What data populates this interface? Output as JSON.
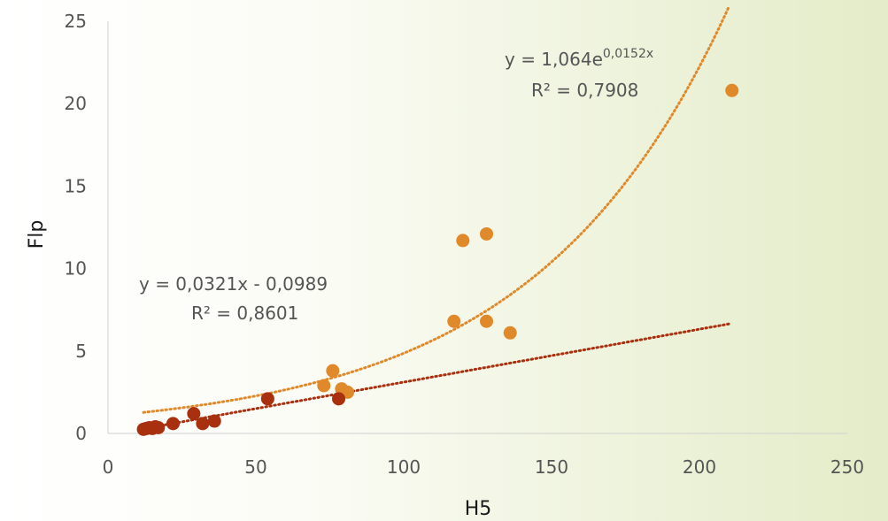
{
  "chart_data": {
    "type": "scatter",
    "xlabel": "H5",
    "ylabel": "Flp",
    "xlim": [
      0,
      250
    ],
    "ylim": [
      0,
      25
    ],
    "x_ticks": [
      "0",
      "50",
      "100",
      "150",
      "200",
      "250"
    ],
    "y_ticks": [
      "0",
      "5",
      "10",
      "15",
      "20",
      "25"
    ],
    "grid": false,
    "legend": "none",
    "series": [
      {
        "color": "#E0892A",
        "points": [
          [
            73,
            2.9
          ],
          [
            76,
            3.8
          ],
          [
            79,
            2.7
          ],
          [
            81,
            2.5
          ],
          [
            117,
            6.8
          ],
          [
            120,
            11.7
          ],
          [
            128,
            12.1
          ],
          [
            128,
            6.8
          ],
          [
            136,
            6.1
          ],
          [
            211,
            20.8
          ]
        ],
        "trendline": {
          "kind": "exponential",
          "a": 1.064,
          "b": 0.0152,
          "x_from": 12,
          "x_to": 210
        }
      },
      {
        "color": "#A8300F",
        "points": [
          [
            12,
            0.25
          ],
          [
            13,
            0.3
          ],
          [
            14,
            0.35
          ],
          [
            15,
            0.3
          ],
          [
            16,
            0.4
          ],
          [
            17,
            0.35
          ],
          [
            22,
            0.6
          ],
          [
            29,
            1.2
          ],
          [
            32,
            0.6
          ],
          [
            36,
            0.75
          ],
          [
            54,
            2.1
          ],
          [
            78,
            2.1
          ]
        ],
        "trendline": {
          "kind": "linear",
          "slope": 0.0321,
          "intercept": -0.0989,
          "x_from": 12,
          "x_to": 210
        }
      }
    ],
    "annotations": {
      "exp_eq_prefix": "y = 1,064e",
      "exp_eq_exponent": "0,0152x",
      "exp_r2": "R² = 0,7908",
      "lin_eq": "y = 0,0321x - 0,0989",
      "lin_r2": "R² = 0,8601"
    }
  }
}
